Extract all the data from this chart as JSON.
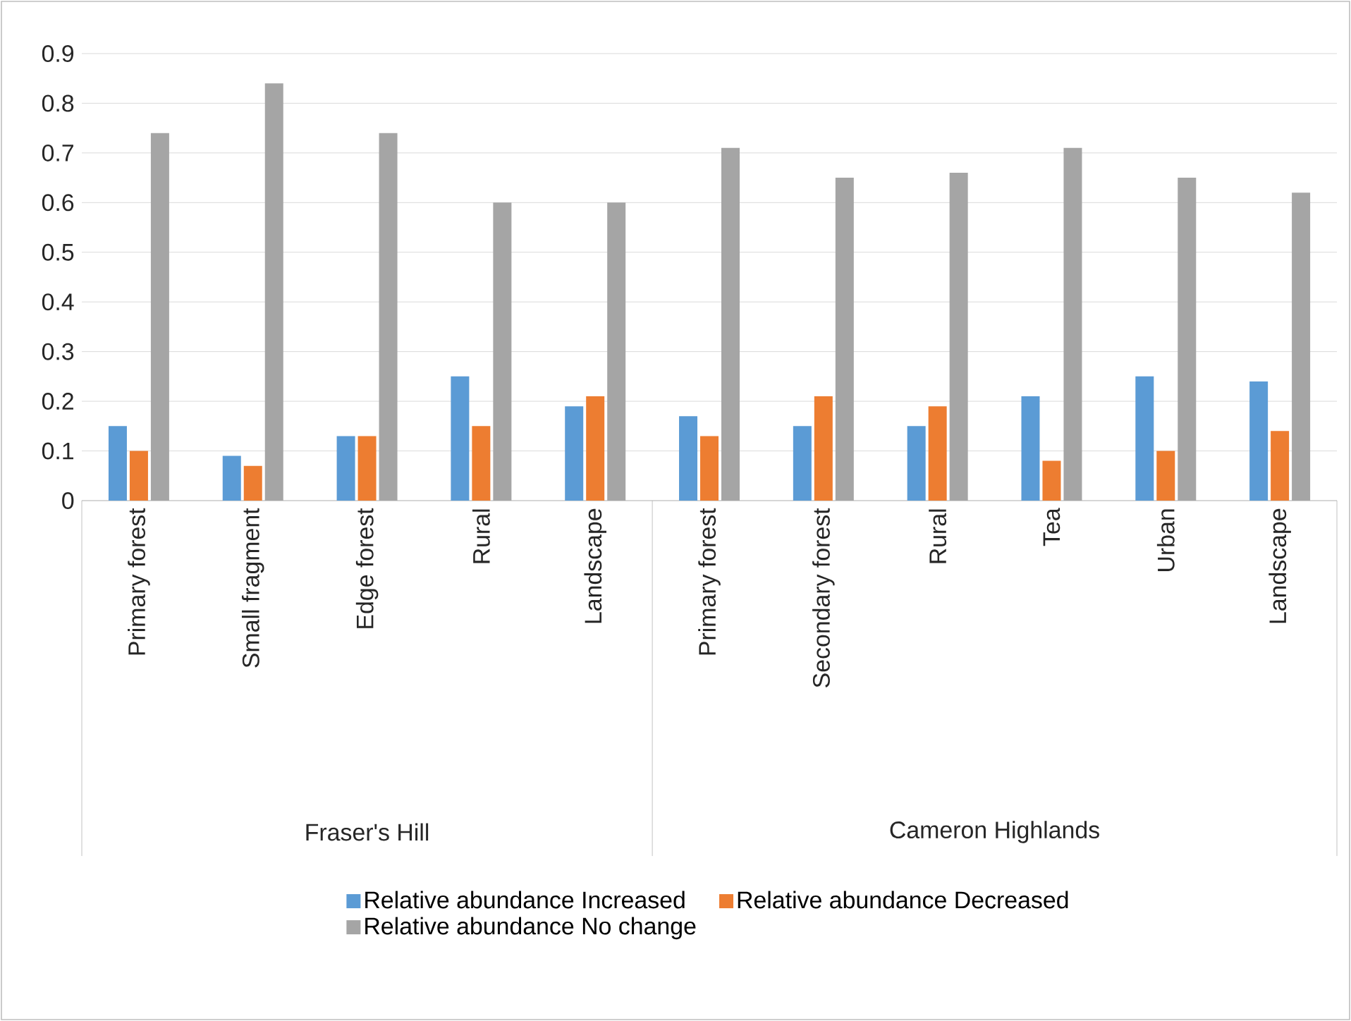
{
  "chart_data": {
    "type": "bar",
    "categories": [
      "Primary forest",
      "Small fragment",
      "Edge forest",
      "Rural",
      "Landscape",
      "Primary forest",
      "Secondary forest",
      "Rural",
      "Tea",
      "Urban",
      "Landscape"
    ],
    "series": [
      {
        "name": "Relative abundance Increased",
        "color": "#5b9bd5",
        "values": [
          0.15,
          0.09,
          0.13,
          0.25,
          0.19,
          0.17,
          0.15,
          0.15,
          0.21,
          0.25,
          0.24
        ]
      },
      {
        "name": "Relative abundance Decreased",
        "color": "#ed7d31",
        "values": [
          0.1,
          0.07,
          0.13,
          0.15,
          0.21,
          0.13,
          0.21,
          0.19,
          0.08,
          0.1,
          0.14
        ]
      },
      {
        "name": "Relative abundance No change",
        "color": "#a5a5a5",
        "values": [
          0.74,
          0.84,
          0.74,
          0.6,
          0.6,
          0.71,
          0.65,
          0.66,
          0.71,
          0.65,
          0.62
        ]
      }
    ],
    "annotations": [
      "Fraser's Hill",
      "Cameron Highlands"
    ],
    "ylim": [
      0,
      0.9
    ],
    "yticks": [
      0,
      0.1,
      0.2,
      0.3,
      0.4,
      0.5,
      0.6,
      0.7,
      0.8,
      0.9
    ],
    "grid": "y",
    "legend": "bottom"
  }
}
